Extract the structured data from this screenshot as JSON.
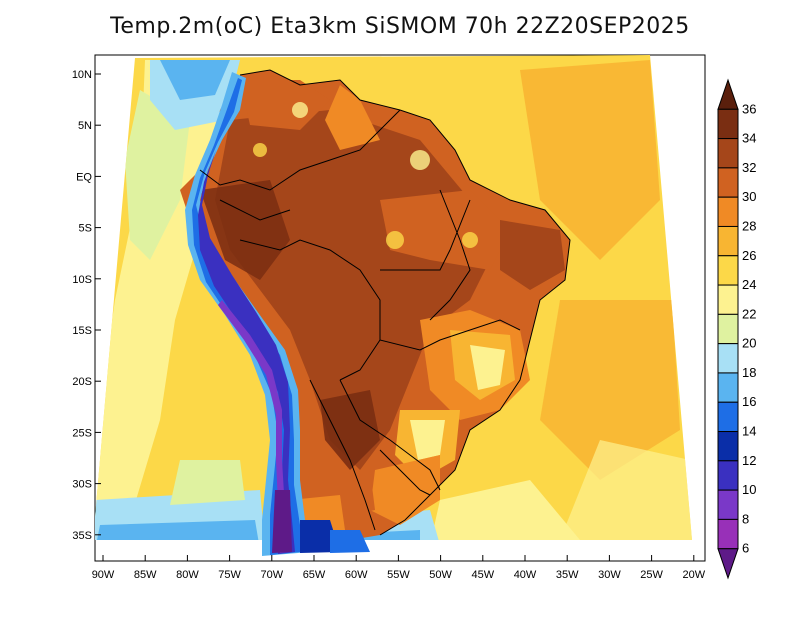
{
  "title": "Temp.2m(oC) Eta3km SiSMOM 70h 22Z20SEP2025",
  "lat_axis": {
    "labels": [
      "10N",
      "5N",
      "EQ",
      "5S",
      "10S",
      "15S",
      "20S",
      "25S",
      "30S",
      "35S"
    ]
  },
  "lon_axis": {
    "labels": [
      "90W",
      "85W",
      "80W",
      "75W",
      "70W",
      "65W",
      "60W",
      "55W",
      "50W",
      "45W",
      "40W",
      "35W",
      "30W",
      "25W",
      "20W"
    ]
  },
  "colorbar": {
    "orientation": "vertical",
    "placement": "right",
    "labels": [
      "36",
      "34",
      "32",
      "30",
      "28",
      "26",
      "24",
      "22",
      "20",
      "18",
      "16",
      "14",
      "12",
      "10",
      "8",
      "6"
    ],
    "bins": [
      {
        "range": ">36",
        "color": "#5a1f0c"
      },
      {
        "range": "34-36",
        "color": "#7a2e12"
      },
      {
        "range": "32-34",
        "color": "#a5461a"
      },
      {
        "range": "30-32",
        "color": "#d06221"
      },
      {
        "range": "28-30",
        "color": "#f08a25"
      },
      {
        "range": "26-28",
        "color": "#f8b532"
      },
      {
        "range": "24-26",
        "color": "#fcd848"
      },
      {
        "range": "22-24",
        "color": "#fdf290"
      },
      {
        "range": "20-22",
        "color": "#dff2a0"
      },
      {
        "range": "18-20",
        "color": "#a8e0f5"
      },
      {
        "range": "16-18",
        "color": "#5ab4f0"
      },
      {
        "range": "14-16",
        "color": "#1e6ee6"
      },
      {
        "range": "12-14",
        "color": "#0a2ea8"
      },
      {
        "range": "10-12",
        "color": "#3a30c0"
      },
      {
        "range": "8-10",
        "color": "#7a38c8"
      },
      {
        "range": "6-8",
        "color": "#9830b8"
      },
      {
        "range": "<6",
        "color": "#5e1a88"
      }
    ]
  }
}
